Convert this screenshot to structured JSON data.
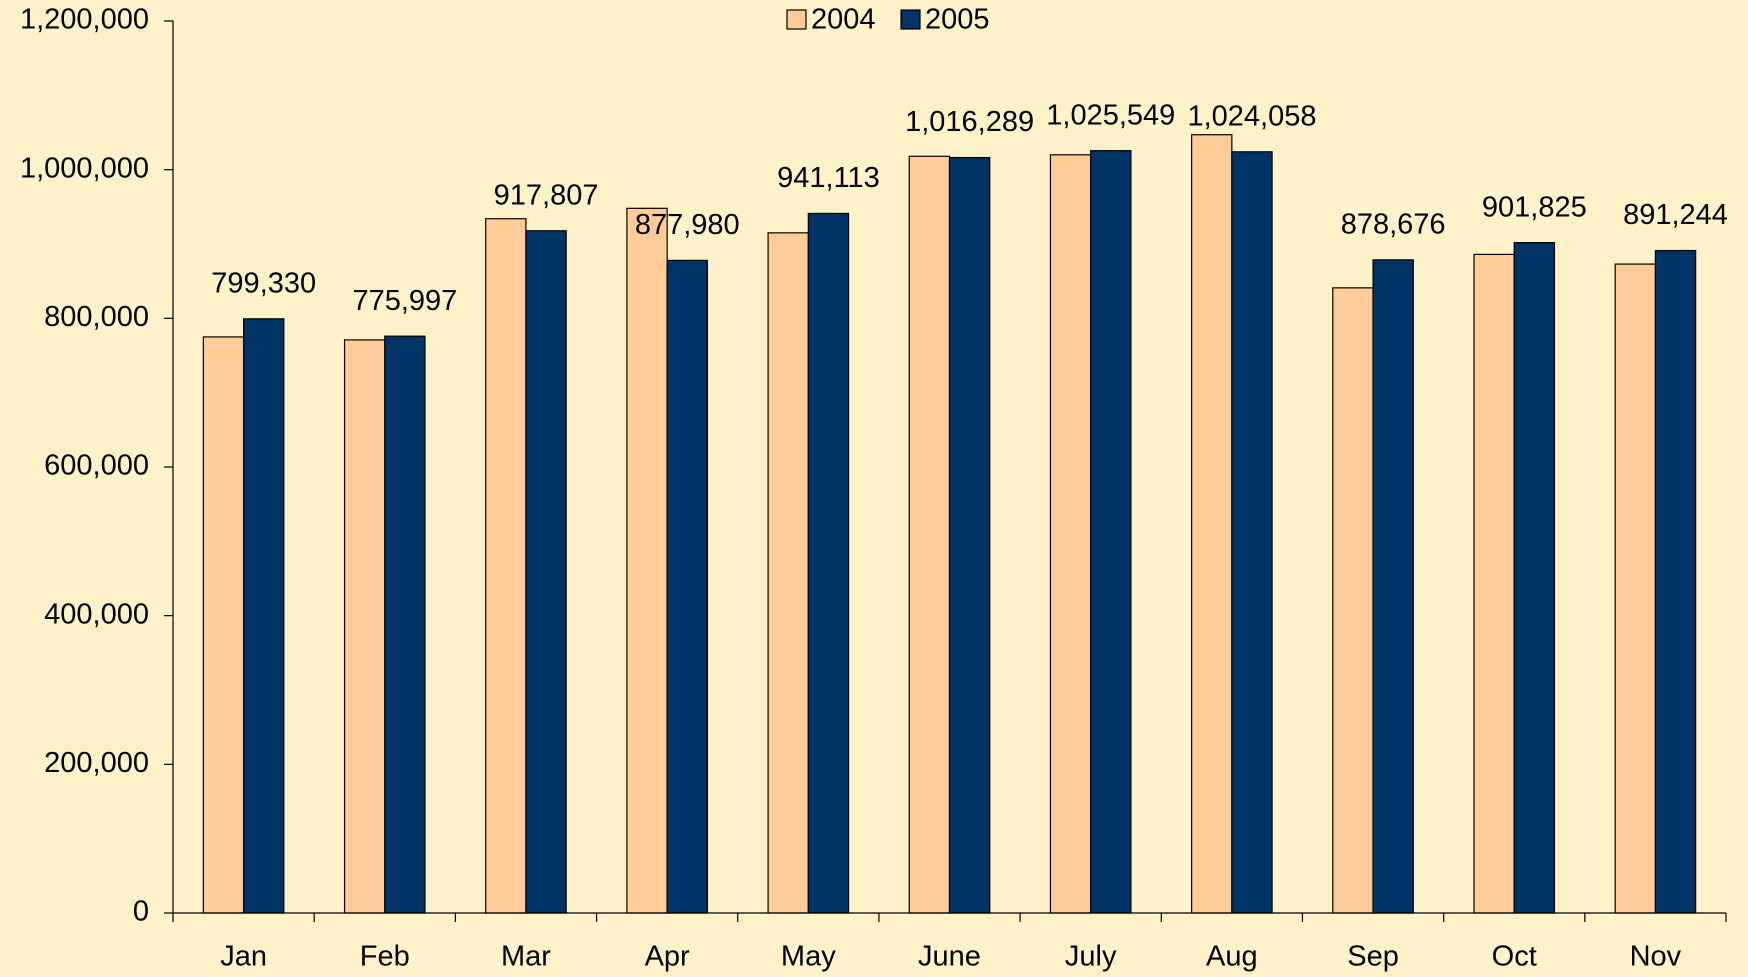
{
  "chart_data": {
    "type": "bar",
    "categories": [
      "Jan",
      "Feb",
      "Mar",
      "Apr",
      "May",
      "June",
      "July",
      "Aug",
      "Sep",
      "Oct",
      "Nov"
    ],
    "series": [
      {
        "name": "2004",
        "color": "#ffcc99",
        "values": [
          775000,
          771000,
          934000,
          948000,
          915000,
          1018000,
          1020000,
          1047000,
          841000,
          886000,
          873000
        ]
      },
      {
        "name": "2005",
        "color": "#003366",
        "values": [
          799330,
          775997,
          917807,
          877980,
          941113,
          1016289,
          1025549,
          1024058,
          878676,
          901825,
          891244
        ],
        "value_labels": [
          "799,330",
          "775,997",
          "917,807",
          "877,980",
          "941,113",
          "1,016,289",
          "1,025,549",
          "1,024,058",
          "878,676",
          "901,825",
          "891,244"
        ]
      }
    ],
    "ylim": [
      0,
      1200000
    ],
    "yticks": [
      0,
      {
        "value": 200000,
        "label": "200,000"
      },
      {
        "value": 400000,
        "label": "400,000"
      },
      {
        "value": 600000,
        "label": "600,000"
      },
      {
        "value": 800000,
        "label": "800,000"
      },
      {
        "value": 1000000,
        "label": "1,000,000"
      },
      {
        "value": 1200000,
        "label": "1,200,000"
      }
    ],
    "legend": "top"
  }
}
